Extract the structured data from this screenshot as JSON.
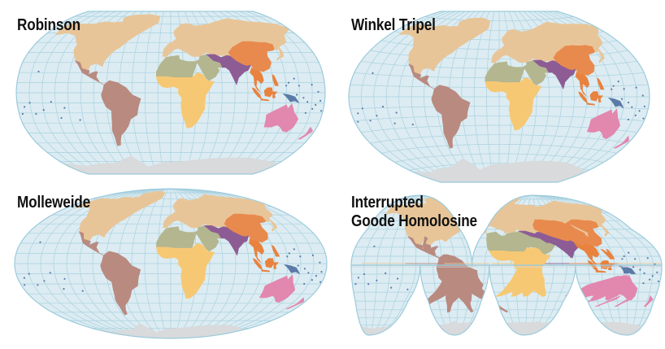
{
  "maps": [
    {
      "id": "robinson",
      "title_lines": [
        "Robinson"
      ]
    },
    {
      "id": "winkel-tripel",
      "title_lines": [
        "Winkel Tripel"
      ]
    },
    {
      "id": "molleweide",
      "title_lines": [
        "Molleweide"
      ]
    },
    {
      "id": "goode-homolosine",
      "title_lines": [
        "Interrupted",
        "Goode Homolosine"
      ]
    }
  ],
  "colors": {
    "ocean": "#dcecf2",
    "graticule": "#a9d1df",
    "outline": "#9ccbdc",
    "north_america_eurasia": "#e8c598",
    "latin_america": "#b98a80",
    "africa": "#f7c874",
    "middle_east": "#b3b68f",
    "south_asia": "#8d5c95",
    "east_asia": "#e88a4e",
    "southeast_asia": "#e8823e",
    "oceania": "#e287ae",
    "pacific_islands": "#5b7aa8",
    "antarctica": "#d8dadc"
  }
}
